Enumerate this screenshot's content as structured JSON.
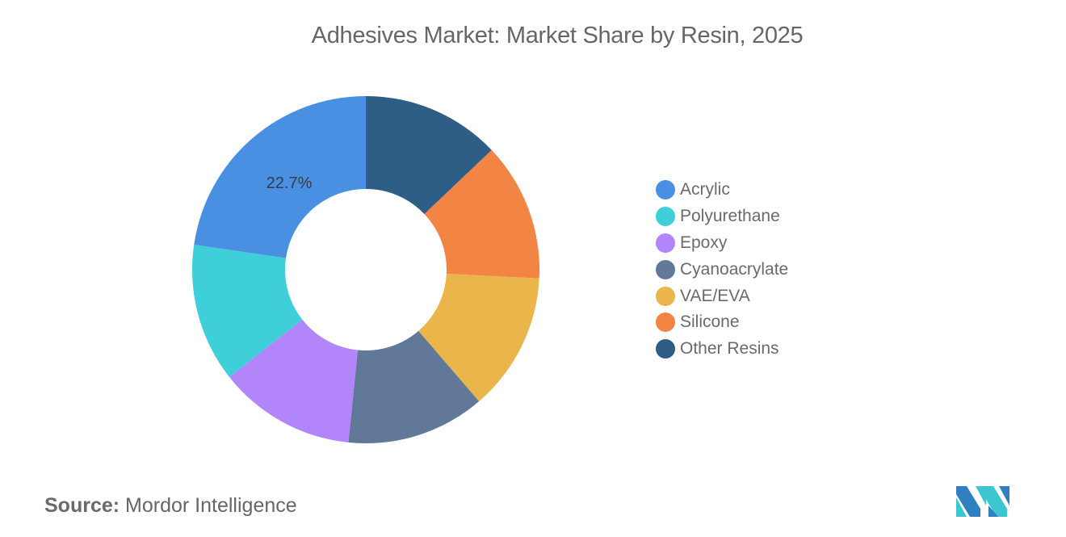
{
  "title": "Adhesives Market: Market Share by Resin, 2025",
  "source": {
    "label": "Source:",
    "value": "Mordor Intelligence"
  },
  "logo": {
    "name": "mordor-intelligence-logo",
    "colors": [
      "#2f7fc1",
      "#3cc6d0"
    ]
  },
  "chart_data": {
    "type": "pie",
    "variant": "donut",
    "title": "Adhesives Market: Market Share by Resin, 2025",
    "start_angle_deg": 0,
    "direction": "counterclockwise-from-top (Acrylic ends at 12 o'clock going left)",
    "legend_position": "right",
    "categories": [
      "Acrylic",
      "Polyurethane",
      "Epoxy",
      "Cyanoacrylate",
      "VAE/EVA",
      "Silicone",
      "Other Resins"
    ],
    "values": [
      22.7,
      12.9,
      12.8,
      12.9,
      12.9,
      12.9,
      12.9
    ],
    "colors": [
      "#4a90e2",
      "#3ecfd9",
      "#b286fa",
      "#627898",
      "#eab54b",
      "#f28444",
      "#2e5e85"
    ],
    "data_labels": [
      {
        "category": "Acrylic",
        "text": "22.7%"
      }
    ]
  },
  "legend": [
    {
      "label": "Acrylic",
      "color": "#4a90e2"
    },
    {
      "label": "Polyurethane",
      "color": "#3ecfd9"
    },
    {
      "label": "Epoxy",
      "color": "#b286fa"
    },
    {
      "label": "Cyanoacrylate",
      "color": "#627898"
    },
    {
      "label": "VAE/EVA",
      "color": "#eab54b"
    },
    {
      "label": "Silicone",
      "color": "#f28444"
    },
    {
      "label": "Other Resins",
      "color": "#2e5e85"
    }
  ]
}
